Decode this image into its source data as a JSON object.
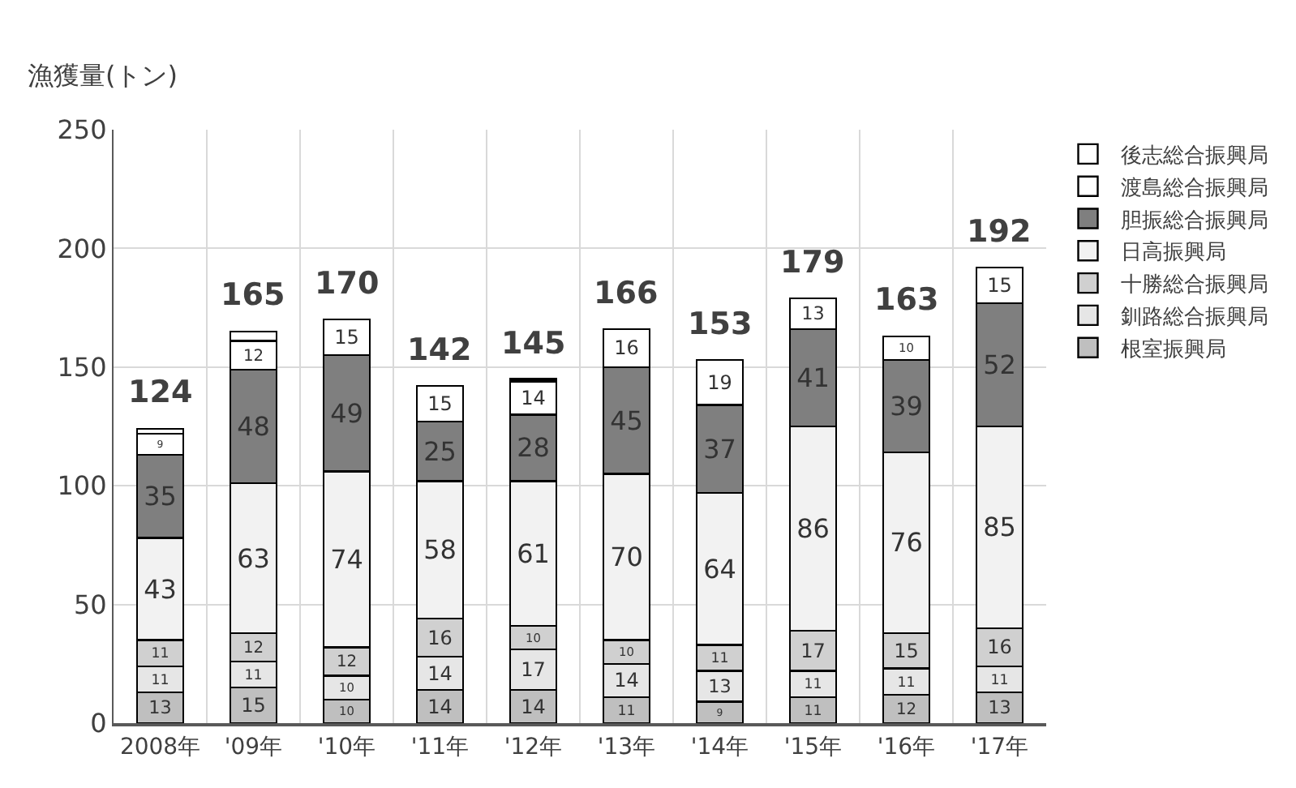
{
  "chart_data": {
    "type": "bar",
    "stacked": true,
    "ylabel": "漁獲量(トン)",
    "categories": [
      "2008年",
      "'09年",
      "'10年",
      "'11年",
      "'12年",
      "'13年",
      "'14年",
      "'15年",
      "'16年",
      "'17年"
    ],
    "series": [
      {
        "name": "根室振興局",
        "color": "#bfbfbf",
        "values": [
          13,
          15,
          10,
          14,
          14,
          11,
          9,
          11,
          12,
          13
        ],
        "value_labels": [
          "13",
          "15",
          "10",
          "14",
          "14",
          "11",
          "9",
          "11",
          "12",
          "13"
        ]
      },
      {
        "name": "釧路総合振興局",
        "color": "#e6e6e6",
        "values": [
          11,
          11,
          10,
          14,
          17,
          14,
          13,
          11,
          11,
          11
        ],
        "value_labels": [
          "11",
          "11",
          "10",
          "14",
          "17",
          "14",
          "13",
          "11",
          "11",
          "11"
        ]
      },
      {
        "name": "十勝総合振興局",
        "color": "#d0d0d0",
        "values": [
          11,
          12,
          12,
          16,
          10,
          10,
          11,
          17,
          15,
          16
        ],
        "value_labels": [
          "11",
          "12",
          "12",
          "16",
          "10",
          "10",
          "11",
          "17",
          "15",
          "16"
        ]
      },
      {
        "name": "日高振興局",
        "color": "#f2f2f2",
        "values": [
          43,
          63,
          74,
          58,
          61,
          70,
          64,
          86,
          76,
          85
        ],
        "value_labels": [
          "43",
          "63",
          "74",
          "58",
          "61",
          "70",
          "64",
          "86",
          "76",
          "85"
        ]
      },
      {
        "name": "胆振総合振興局",
        "color": "#7f7f7f",
        "values": [
          35,
          48,
          49,
          25,
          28,
          45,
          37,
          41,
          39,
          52
        ],
        "value_labels": [
          "35",
          "48",
          "49",
          "25",
          "28",
          "45",
          "37",
          "41",
          "39",
          "52"
        ]
      },
      {
        "name": "渡島総合振興局",
        "color": "#ffffff",
        "values": [
          9,
          12,
          15,
          15,
          14,
          16,
          19,
          13,
          10,
          15
        ],
        "value_labels": [
          "9",
          "12",
          "15",
          "15",
          "14",
          "16",
          "19",
          "13",
          "10",
          "15"
        ]
      },
      {
        "name": "後志総合振興局",
        "color": "#ffffff",
        "values": [
          2,
          4,
          0,
          0,
          1,
          0,
          0,
          0,
          0,
          0
        ],
        "value_labels": [
          null,
          null,
          null,
          null,
          null,
          null,
          null,
          null,
          null,
          null
        ]
      }
    ],
    "totals": [
      "124",
      "165",
      "170",
      "142",
      "145",
      "166",
      "153",
      "179",
      "163",
      "192"
    ],
    "ylim": [
      0,
      250
    ],
    "yticks": [
      0,
      50,
      100,
      150,
      200,
      250
    ],
    "grid": true,
    "legend": "right"
  }
}
